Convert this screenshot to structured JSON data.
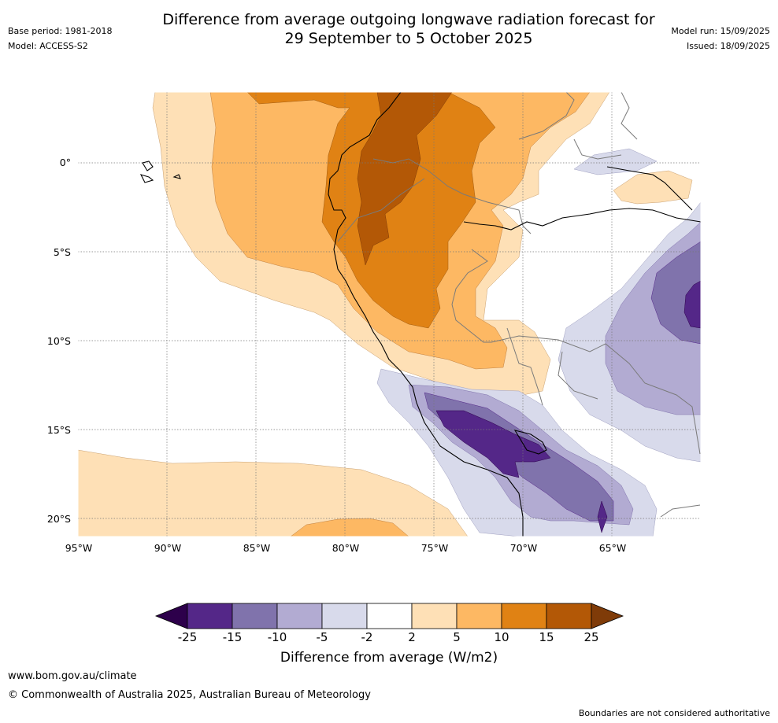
{
  "header": {
    "title_line1": "Difference from average outgoing longwave radiation forecast for",
    "title_line2": "29 September to 5 October 2025",
    "base_period": "Base period: 1981-2018",
    "model": "Model: ACCESS-S2",
    "model_run": "Model run: 15/09/2025",
    "issued": "Issued: 18/09/2025"
  },
  "map": {
    "lat_labels": [
      "0°",
      "5°S",
      "10°S",
      "15°S",
      "20°S"
    ],
    "lon_labels": [
      "95°W",
      "90°W",
      "85°W",
      "80°W",
      "75°W",
      "70°W",
      "65°W"
    ]
  },
  "colorbar": {
    "label": "Difference from average (W/m2)",
    "ticks": [
      "-25",
      "-15",
      "-10",
      "-5",
      "-2",
      "2",
      "5",
      "10",
      "15",
      "25"
    ],
    "colors": [
      "#2d004b",
      "#542788",
      "#8073ac",
      "#b2abd2",
      "#d8daeb",
      "#ffffff",
      "#fee0b6",
      "#fdb863",
      "#e08214",
      "#b35806",
      "#7f3b08"
    ]
  },
  "footer": {
    "website": "www.bom.gov.au/climate",
    "copyright": "© Commonwealth of Australia 2025, Australian Bureau of Meteorology",
    "disclaimer": "Boundaries are not considered authoritative"
  }
}
